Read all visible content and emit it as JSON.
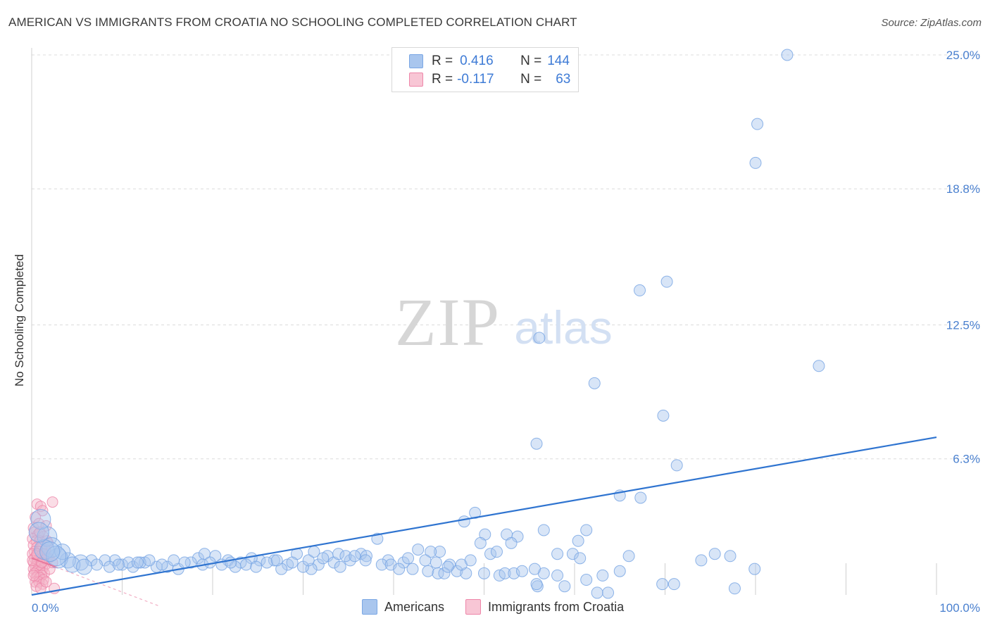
{
  "header": {
    "title": "AMERICAN VS IMMIGRANTS FROM CROATIA NO SCHOOLING COMPLETED CORRELATION CHART",
    "source": "Source: ZipAtlas.com"
  },
  "legend": {
    "rows": [
      {
        "r_label": "R =",
        "r_value": "0.416",
        "n_label": "N =",
        "n_value": "144"
      },
      {
        "r_label": "R =",
        "r_value": "-0.117",
        "n_label": "N =",
        "n_value": "63"
      }
    ]
  },
  "bottom_legend": {
    "items": [
      {
        "label": "Americans"
      },
      {
        "label": "Immigrants from Croatia"
      }
    ]
  },
  "colors": {
    "blue_fill": "#a9c6ee",
    "blue_stroke": "#7aa7e4",
    "blue_line": "#2f74d0",
    "pink_fill": "#f4b3c8",
    "pink_stroke": "#ee86a9",
    "pink_line": "#e8789c",
    "tick_label": "#4a80cf",
    "grid": "#dcdcdc"
  },
  "chart_data": {
    "type": "scatter",
    "title": "AMERICAN VS IMMIGRANTS FROM CROATIA NO SCHOOLING COMPLETED CORRELATION CHART",
    "xlabel": "",
    "ylabel": "No Schooling Completed",
    "xlim": [
      0,
      100
    ],
    "ylim": [
      0,
      25
    ],
    "x_tick_labels": [
      "0.0%",
      "100.0%"
    ],
    "y_ticks": [
      6.3,
      12.5,
      18.8,
      25.0
    ],
    "y_tick_labels": [
      "6.3%",
      "12.5%",
      "18.8%",
      "25.0%"
    ],
    "watermark": {
      "zip": "ZIP",
      "atlas": "atlas"
    },
    "series": [
      {
        "name": "Americans",
        "color": "blue",
        "r": 0.416,
        "n": 144,
        "trendline": {
          "x": [
            0,
            100
          ],
          "y": [
            0.0,
            7.3
          ]
        },
        "points": [
          [
            83.5,
            25.0
          ],
          [
            80.2,
            21.8
          ],
          [
            80.0,
            20.0
          ],
          [
            67.2,
            14.1
          ],
          [
            70.2,
            14.5
          ],
          [
            56.1,
            11.9
          ],
          [
            87.0,
            10.6
          ],
          [
            62.2,
            9.8
          ],
          [
            69.8,
            8.3
          ],
          [
            55.8,
            7.0
          ],
          [
            71.3,
            6.0
          ],
          [
            65.0,
            4.6
          ],
          [
            67.3,
            4.5
          ],
          [
            49.0,
            3.8
          ],
          [
            47.8,
            3.4
          ],
          [
            50.1,
            2.8
          ],
          [
            52.5,
            2.8
          ],
          [
            53.7,
            2.7
          ],
          [
            56.6,
            3.0
          ],
          [
            61.3,
            3.0
          ],
          [
            38.2,
            2.6
          ],
          [
            45.1,
            2.0
          ],
          [
            49.6,
            2.4
          ],
          [
            53.0,
            2.4
          ],
          [
            60.4,
            2.5
          ],
          [
            58.1,
            1.9
          ],
          [
            59.8,
            1.9
          ],
          [
            60.6,
            1.7
          ],
          [
            66.0,
            1.8
          ],
          [
            74.0,
            1.6
          ],
          [
            75.5,
            1.9
          ],
          [
            77.2,
            1.8
          ],
          [
            50.7,
            1.9
          ],
          [
            51.4,
            2.0
          ],
          [
            42.7,
            2.1
          ],
          [
            44.1,
            2.0
          ],
          [
            36.4,
            1.9
          ],
          [
            35.2,
            1.6
          ],
          [
            37.0,
            1.8
          ],
          [
            39.4,
            1.6
          ],
          [
            46.2,
            1.4
          ],
          [
            47.0,
            1.1
          ],
          [
            56.6,
            1.0
          ],
          [
            41.1,
            1.5
          ],
          [
            42.1,
            1.2
          ],
          [
            43.8,
            1.1
          ],
          [
            44.9,
            1.0
          ],
          [
            45.6,
            1.0
          ],
          [
            48.0,
            1.0
          ],
          [
            32.7,
            1.8
          ],
          [
            33.4,
            1.5
          ],
          [
            34.1,
            1.3
          ],
          [
            31.7,
            1.4
          ],
          [
            30.9,
            1.2
          ],
          [
            29.3,
            1.9
          ],
          [
            28.3,
            1.4
          ],
          [
            27.6,
            1.2
          ],
          [
            26.8,
            1.6
          ],
          [
            25.2,
            1.6
          ],
          [
            24.3,
            1.7
          ],
          [
            23.1,
            1.5
          ],
          [
            21.7,
            1.6
          ],
          [
            22.5,
            1.3
          ],
          [
            20.3,
            1.8
          ],
          [
            18.4,
            1.7
          ],
          [
            19.1,
            1.9
          ],
          [
            17.6,
            1.5
          ],
          [
            16.2,
            1.2
          ],
          [
            15.0,
            1.3
          ],
          [
            13.8,
            1.3
          ],
          [
            12.5,
            1.5
          ],
          [
            11.2,
            1.3
          ],
          [
            10.0,
            1.4
          ],
          [
            9.2,
            1.6
          ],
          [
            8.1,
            1.6
          ],
          [
            6.6,
            1.6
          ],
          [
            5.4,
            1.5
          ],
          [
            4.0,
            1.6
          ],
          [
            2.9,
            1.7
          ],
          [
            1.7,
            2.7
          ],
          [
            2.2,
            2.2
          ],
          [
            1.0,
            3.5
          ],
          [
            3.4,
            2.0
          ],
          [
            10.7,
            1.5
          ],
          [
            12.0,
            1.5
          ],
          [
            13.0,
            1.6
          ],
          [
            14.4,
            1.4
          ],
          [
            15.7,
            1.6
          ],
          [
            16.9,
            1.5
          ],
          [
            18.9,
            1.4
          ],
          [
            19.7,
            1.5
          ],
          [
            21.0,
            1.4
          ],
          [
            22.0,
            1.5
          ],
          [
            23.7,
            1.4
          ],
          [
            24.8,
            1.3
          ],
          [
            26.0,
            1.5
          ],
          [
            27.1,
            1.6
          ],
          [
            28.8,
            1.5
          ],
          [
            30.0,
            1.3
          ],
          [
            30.6,
            1.6
          ],
          [
            31.2,
            2.0
          ],
          [
            32.2,
            1.7
          ],
          [
            33.9,
            1.9
          ],
          [
            34.7,
            1.8
          ],
          [
            35.7,
            1.8
          ],
          [
            36.9,
            1.6
          ],
          [
            38.7,
            1.4
          ],
          [
            39.7,
            1.4
          ],
          [
            40.6,
            1.2
          ],
          [
            41.6,
            1.7
          ],
          [
            43.5,
            1.6
          ],
          [
            44.7,
            1.5
          ],
          [
            46.0,
            1.3
          ],
          [
            47.5,
            1.4
          ],
          [
            48.5,
            1.6
          ],
          [
            50.0,
            1.0
          ],
          [
            51.7,
            0.9
          ],
          [
            52.3,
            1.0
          ],
          [
            53.3,
            1.0
          ],
          [
            54.2,
            1.1
          ],
          [
            55.6,
            1.2
          ],
          [
            55.9,
            0.4
          ],
          [
            58.1,
            0.9
          ],
          [
            58.9,
            0.4
          ],
          [
            61.3,
            0.7
          ],
          [
            63.7,
            0.1
          ],
          [
            63.1,
            0.9
          ],
          [
            65.0,
            1.1
          ],
          [
            69.7,
            0.5
          ],
          [
            71.0,
            0.5
          ],
          [
            77.7,
            0.3
          ],
          [
            79.9,
            1.2
          ],
          [
            55.8,
            0.5
          ],
          [
            62.5,
            0.1
          ],
          [
            1.4,
            2.1
          ],
          [
            2.7,
            1.8
          ],
          [
            4.5,
            1.4
          ],
          [
            5.8,
            1.3
          ],
          [
            7.2,
            1.4
          ],
          [
            8.6,
            1.3
          ],
          [
            9.6,
            1.4
          ],
          [
            11.7,
            1.5
          ],
          [
            2.0,
            2.0
          ],
          [
            0.8,
            2.9
          ]
        ]
      },
      {
        "name": "Immigrants from Croatia",
        "color": "pink",
        "r": -0.117,
        "n": 63,
        "trendline": {
          "x": [
            0,
            2.6
          ],
          "y": [
            1.7,
            1.3
          ]
        },
        "points": [
          [
            0.6,
            4.2
          ],
          [
            1.0,
            4.1
          ],
          [
            2.3,
            4.3
          ],
          [
            1.2,
            3.9
          ],
          [
            0.4,
            3.6
          ],
          [
            0.2,
            3.1
          ],
          [
            0.8,
            3.3
          ],
          [
            1.6,
            3.2
          ],
          [
            0.3,
            2.9
          ],
          [
            0.7,
            2.8
          ],
          [
            1.3,
            2.7
          ],
          [
            0.1,
            2.6
          ],
          [
            0.5,
            2.5
          ],
          [
            0.9,
            2.5
          ],
          [
            1.8,
            2.4
          ],
          [
            0.2,
            2.3
          ],
          [
            0.6,
            2.2
          ],
          [
            1.1,
            2.2
          ],
          [
            1.5,
            2.1
          ],
          [
            0.3,
            2.0
          ],
          [
            0.8,
            2.0
          ],
          [
            1.2,
            1.9
          ],
          [
            0.1,
            1.9
          ],
          [
            0.5,
            1.8
          ],
          [
            1.0,
            1.8
          ],
          [
            1.7,
            1.7
          ],
          [
            0.3,
            1.7
          ],
          [
            0.7,
            1.6
          ],
          [
            1.3,
            1.6
          ],
          [
            0.2,
            1.5
          ],
          [
            0.6,
            1.5
          ],
          [
            1.0,
            1.4
          ],
          [
            1.5,
            1.4
          ],
          [
            0.4,
            1.3
          ],
          [
            0.8,
            1.3
          ],
          [
            1.2,
            1.2
          ],
          [
            0.2,
            1.2
          ],
          [
            0.6,
            1.1
          ],
          [
            1.0,
            1.1
          ],
          [
            1.4,
            1.0
          ],
          [
            0.3,
            1.0
          ],
          [
            0.7,
            0.9
          ],
          [
            1.1,
            0.9
          ],
          [
            0.5,
            0.8
          ],
          [
            0.9,
            0.8
          ],
          [
            1.3,
            0.7
          ],
          [
            0.4,
            0.6
          ],
          [
            0.8,
            0.6
          ],
          [
            1.2,
            0.5
          ],
          [
            2.0,
            1.2
          ],
          [
            1.9,
            1.7
          ],
          [
            2.3,
            1.5
          ],
          [
            0.5,
            0.4
          ],
          [
            1.0,
            0.3
          ],
          [
            2.5,
            0.3
          ],
          [
            1.6,
            0.6
          ],
          [
            0.1,
            1.6
          ],
          [
            0.2,
            0.9
          ],
          [
            1.4,
            1.9
          ],
          [
            0.9,
            2.9
          ],
          [
            1.7,
            2.5
          ],
          [
            0.6,
            1.9
          ],
          [
            1.1,
            1.5
          ]
        ]
      }
    ]
  }
}
